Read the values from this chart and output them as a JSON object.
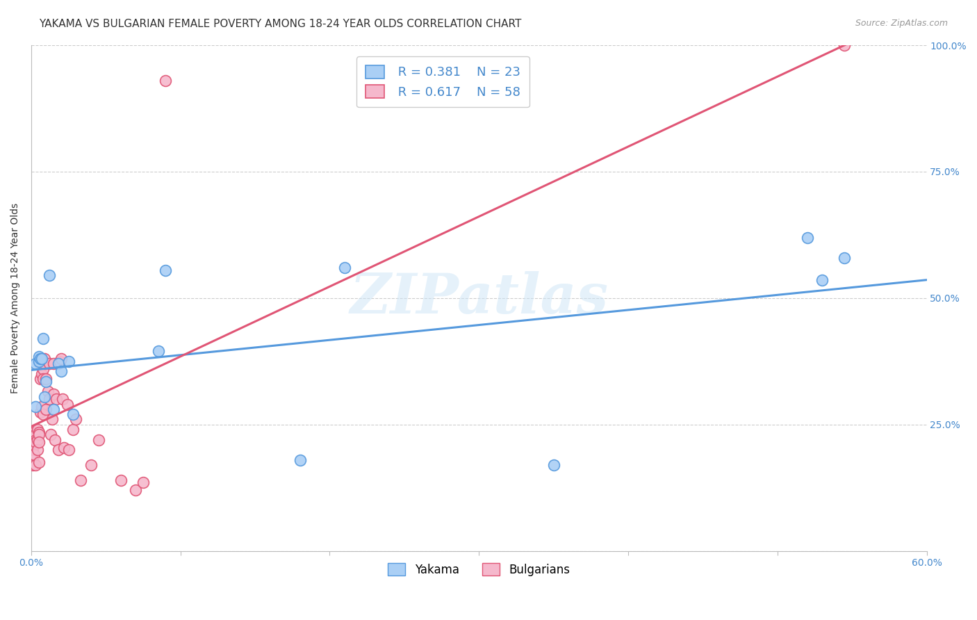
{
  "title": "YAKAMA VS BULGARIAN FEMALE POVERTY AMONG 18-24 YEAR OLDS CORRELATION CHART",
  "source": "Source: ZipAtlas.com",
  "ylabel": "Female Poverty Among 18-24 Year Olds",
  "xlim": [
    0.0,
    0.6
  ],
  "ylim": [
    0.0,
    1.0
  ],
  "xticks": [
    0.0,
    0.1,
    0.2,
    0.3,
    0.4,
    0.5,
    0.6
  ],
  "xticklabels": [
    "0.0%",
    "",
    "",
    "",
    "",
    "",
    "60.0%"
  ],
  "yticks": [
    0.0,
    0.25,
    0.5,
    0.75,
    1.0
  ],
  "background_color": "#ffffff",
  "watermark": "ZIPatlas",
  "legend_R_yakama": "R = 0.381",
  "legend_N_yakama": "N = 23",
  "legend_R_bulg": "R = 0.617",
  "legend_N_bulg": "N = 58",
  "yakama_color": "#aacff5",
  "bulg_color": "#f5b8cc",
  "yakama_line_color": "#5599DD",
  "bulg_line_color": "#E05575",
  "title_fontsize": 11,
  "axis_label_fontsize": 10,
  "tick_fontsize": 10,
  "legend_fontsize": 13,
  "yakama_x": [
    0.003,
    0.003,
    0.005,
    0.005,
    0.006,
    0.007,
    0.008,
    0.009,
    0.01,
    0.012,
    0.015,
    0.018,
    0.02,
    0.025,
    0.028,
    0.085,
    0.09,
    0.18,
    0.21,
    0.35,
    0.52,
    0.53,
    0.545
  ],
  "yakama_y": [
    0.285,
    0.37,
    0.375,
    0.385,
    0.38,
    0.38,
    0.42,
    0.305,
    0.335,
    0.545,
    0.28,
    0.37,
    0.355,
    0.375,
    0.27,
    0.395,
    0.555,
    0.18,
    0.56,
    0.17,
    0.62,
    0.535,
    0.58
  ],
  "bulg_x": [
    0.001,
    0.001,
    0.001,
    0.001,
    0.002,
    0.002,
    0.002,
    0.002,
    0.003,
    0.003,
    0.003,
    0.003,
    0.004,
    0.004,
    0.004,
    0.005,
    0.005,
    0.005,
    0.005,
    0.006,
    0.006,
    0.006,
    0.007,
    0.007,
    0.007,
    0.008,
    0.008,
    0.008,
    0.009,
    0.009,
    0.01,
    0.01,
    0.011,
    0.012,
    0.012,
    0.013,
    0.014,
    0.015,
    0.015,
    0.016,
    0.017,
    0.018,
    0.019,
    0.02,
    0.021,
    0.022,
    0.024,
    0.025,
    0.028,
    0.03,
    0.033,
    0.04,
    0.045,
    0.06,
    0.07,
    0.075,
    0.09,
    0.545
  ],
  "bulg_y": [
    0.22,
    0.2,
    0.18,
    0.17,
    0.235,
    0.215,
    0.21,
    0.19,
    0.23,
    0.22,
    0.215,
    0.17,
    0.24,
    0.22,
    0.2,
    0.235,
    0.23,
    0.215,
    0.175,
    0.37,
    0.34,
    0.275,
    0.37,
    0.35,
    0.285,
    0.36,
    0.34,
    0.27,
    0.38,
    0.37,
    0.34,
    0.28,
    0.315,
    0.37,
    0.3,
    0.23,
    0.26,
    0.37,
    0.31,
    0.22,
    0.3,
    0.2,
    0.375,
    0.38,
    0.3,
    0.205,
    0.29,
    0.2,
    0.24,
    0.26,
    0.14,
    0.17,
    0.22,
    0.14,
    0.12,
    0.135,
    0.93,
    1.0
  ]
}
